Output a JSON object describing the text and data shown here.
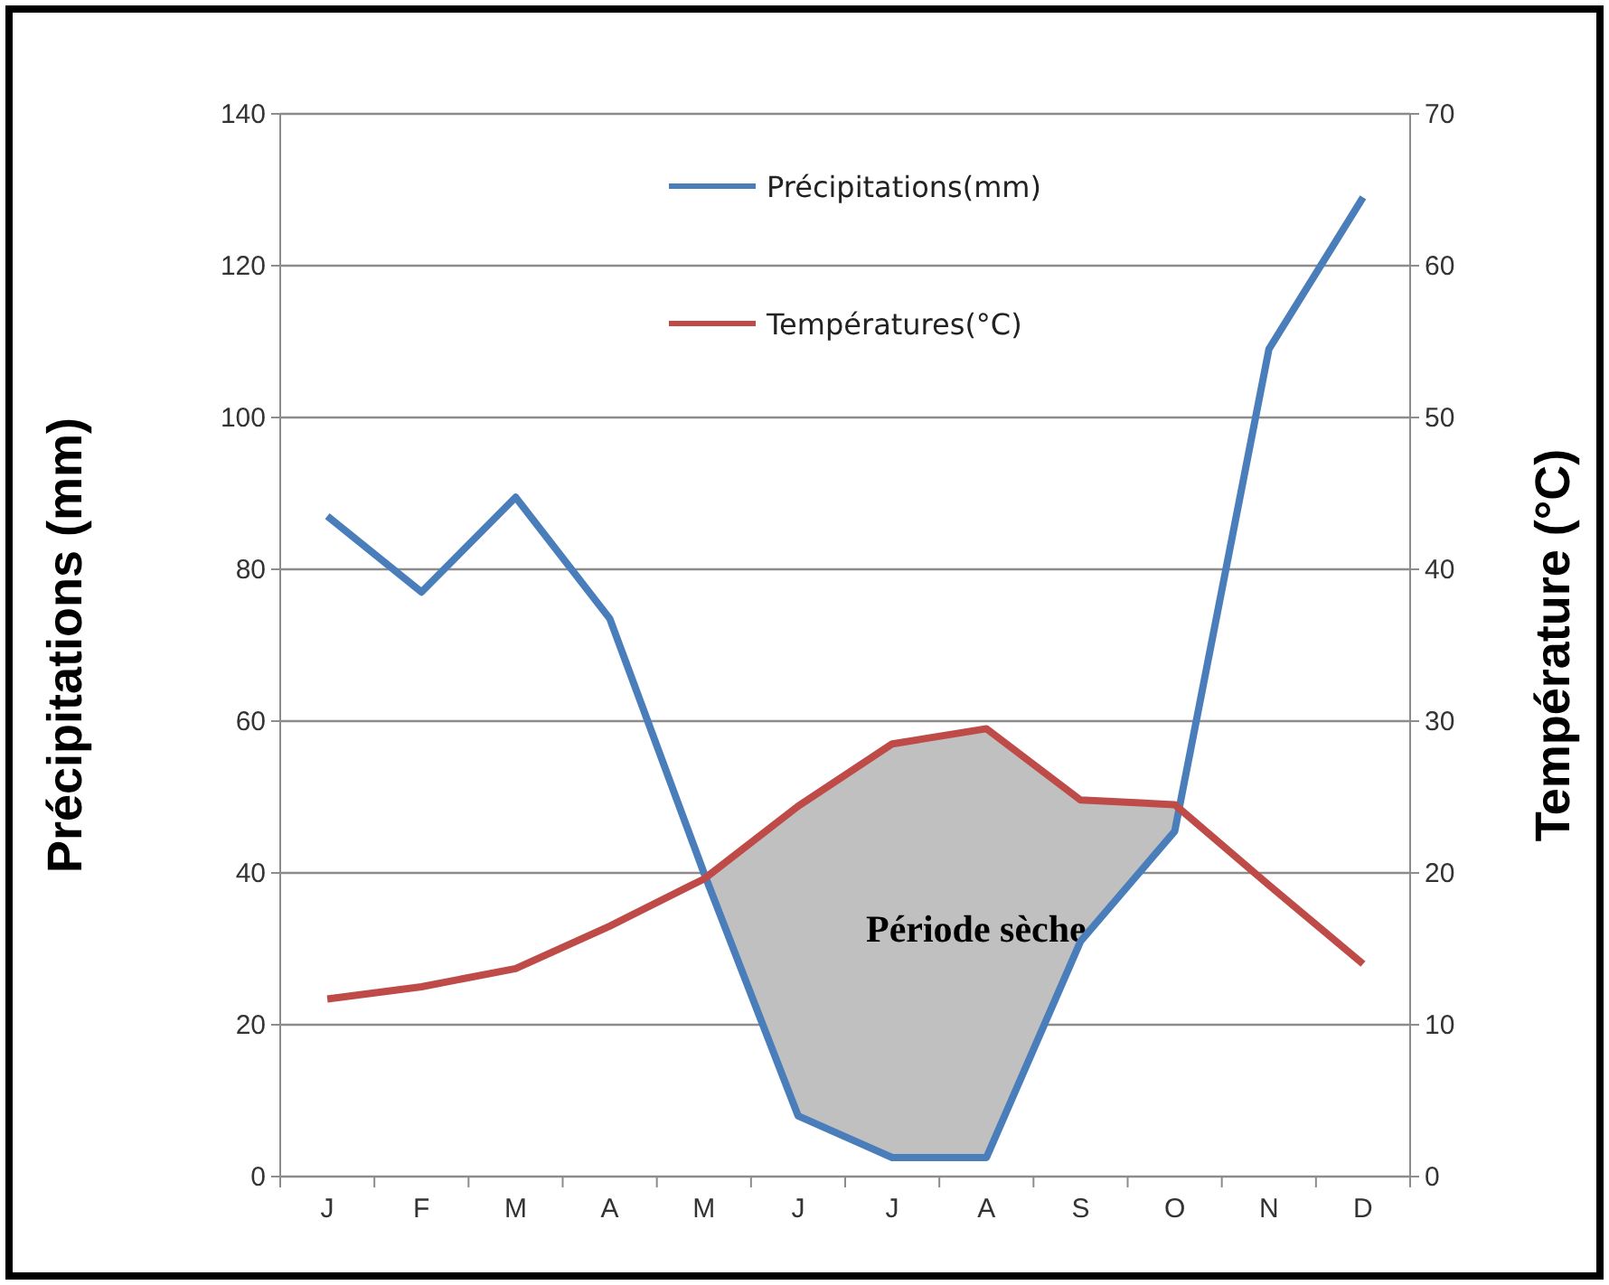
{
  "chart_data": {
    "type": "line",
    "ylabel": "Précipitations (mm)",
    "y2label": "Température (°C)",
    "categories": [
      "J",
      "F",
      "M",
      "A",
      "M",
      "J",
      "J",
      "A",
      "S",
      "O",
      "N",
      "D"
    ],
    "series": [
      {
        "name": "Précipitations(mm)",
        "color": "#4a7ebb",
        "values": [
          87,
          77,
          89.5,
          73.5,
          40,
          8,
          2.5,
          2.5,
          31,
          45.5,
          109,
          129
        ]
      },
      {
        "name": "Températures(°C)",
        "color": "#be4b48",
        "axis": "y2",
        "values": [
          11.7,
          12.5,
          13.7,
          16.5,
          19.6,
          24.4,
          28.5,
          29.5,
          24.8,
          24.5,
          19.2,
          14
        ]
      }
    ],
    "ylim": [
      0,
      140
    ],
    "yticks": [
      0,
      20,
      40,
      60,
      80,
      100,
      120,
      140
    ],
    "y2lim": [
      0,
      70
    ],
    "y2ticks": [
      0,
      10,
      20,
      30,
      40,
      50,
      60,
      70
    ],
    "annotations": [
      "Période sèche"
    ],
    "grid": "y",
    "legend": "top",
    "line_style": "solid",
    "marker": "none"
  }
}
